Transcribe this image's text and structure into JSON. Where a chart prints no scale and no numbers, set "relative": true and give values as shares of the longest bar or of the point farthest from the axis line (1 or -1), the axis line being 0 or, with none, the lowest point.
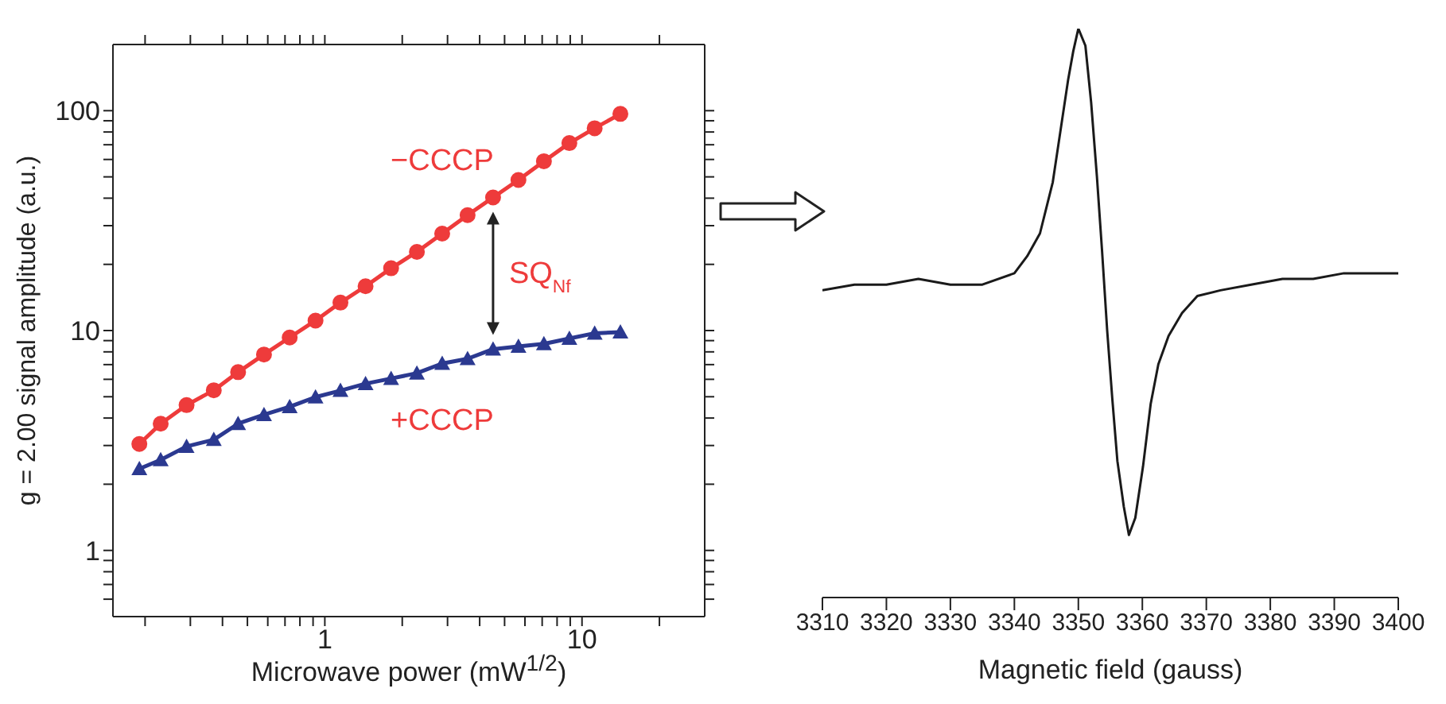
{
  "chart_data": [
    {
      "type": "line",
      "xlabel": "Microwave power (mW$^{1/2}$)",
      "ylabel": "g = 2.00 signal amplitude (a.u.)",
      "log": "xy",
      "xlim": [
        0.15,
        30
      ],
      "ylim": [
        0.5,
        200
      ],
      "xticks": [
        {
          "value": 0.2,
          "label": null
        },
        {
          "value": 0.3,
          "label": null
        },
        {
          "value": 0.4,
          "label": null
        },
        {
          "value": 0.5,
          "label": null
        },
        {
          "value": 0.6,
          "label": null
        },
        {
          "value": 0.7,
          "label": null
        },
        {
          "value": 0.8,
          "label": null
        },
        {
          "value": 0.9,
          "label": null
        },
        1,
        {
          "value": 2,
          "label": null
        },
        {
          "value": 3,
          "label": null
        },
        {
          "value": 4,
          "label": null
        },
        {
          "value": 5,
          "label": null
        },
        {
          "value": 6,
          "label": null
        },
        {
          "value": 7,
          "label": null
        },
        {
          "value": 8,
          "label": null
        },
        {
          "value": 9,
          "label": null
        },
        10,
        {
          "value": 20,
          "label": null
        }
      ],
      "yticks": [
        {
          "value": 0.6,
          "label": null
        },
        {
          "value": 0.7,
          "label": null
        },
        {
          "value": 0.8,
          "label": null
        },
        {
          "value": 0.9,
          "label": null
        },
        1,
        {
          "value": 2,
          "label": null
        },
        {
          "value": 3,
          "label": null
        },
        {
          "value": 4,
          "label": null
        },
        {
          "value": 5,
          "label": null
        },
        {
          "value": 6,
          "label": null
        },
        {
          "value": 7,
          "label": null
        },
        {
          "value": 8,
          "label": null
        },
        {
          "value": 9,
          "label": null
        },
        10,
        {
          "value": 20,
          "label": null
        },
        {
          "value": 30,
          "label": null
        },
        {
          "value": 40,
          "label": null
        },
        {
          "value": 50,
          "label": null
        },
        {
          "value": 60,
          "label": null
        },
        {
          "value": 70,
          "label": null
        },
        {
          "value": 80,
          "label": null
        },
        {
          "value": 90,
          "label": null
        },
        100
      ],
      "x": [
        0.19,
        0.23,
        0.29,
        0.37,
        0.46,
        0.58,
        0.73,
        0.92,
        1.15,
        1.44,
        1.81,
        2.28,
        2.86,
        3.59,
        4.51,
        5.66,
        7.11,
        8.93,
        11.2,
        14.1
      ],
      "series": [
        {
          "name": "−CCCP",
          "color": "#ee3b3b",
          "marker": "circle",
          "values": [
            3.05,
            3.77,
            4.58,
            5.35,
            6.47,
            7.78,
            9.3,
            11.1,
            13.4,
            15.9,
            19.2,
            22.8,
            27.6,
            33.5,
            40.3,
            48.4,
            58.9,
            71.2,
            83.2,
            96.7
          ]
        },
        {
          "name": "+CCCP",
          "color": "#2b3990",
          "marker": "triangle",
          "values": [
            2.35,
            2.58,
            2.97,
            3.19,
            3.77,
            4.14,
            4.5,
            4.98,
            5.33,
            5.73,
            6.05,
            6.4,
            7.08,
            7.44,
            8.23,
            8.46,
            8.7,
            9.2,
            9.72,
            9.84
          ]
        }
      ],
      "annotations": [
        "SQ$_{Nf}$"
      ]
    },
    {
      "type": "line",
      "relative": true,
      "xlabel": "Magnetic field (gauss)",
      "xlim": [
        3310,
        3400
      ],
      "xticks": [
        3310,
        3320,
        3330,
        3340,
        3350,
        3360,
        3370,
        3380,
        3390,
        3400
      ],
      "marker": "none",
      "x": [
        3310,
        3315,
        3320,
        3325,
        3330,
        3335,
        3340,
        3342,
        3344,
        3346,
        3347.2,
        3348.4,
        3349.2,
        3350,
        3351.1,
        3352,
        3352.9,
        3353.7,
        3354.5,
        3355.3,
        3356.1,
        3357.1,
        3357.9,
        3358.9,
        3360.1,
        3361.3,
        3362.5,
        3364.1,
        3366.2,
        3368.6,
        3372.2,
        3377,
        3381.9,
        3386.7,
        3391.5,
        3395.6,
        3400
      ],
      "series": [
        {
          "color": "#1a1a1a",
          "values": [
            0.54,
            0.55,
            0.55,
            0.56,
            0.55,
            0.55,
            0.57,
            0.6,
            0.64,
            0.73,
            0.82,
            0.91,
            0.96,
            1,
            0.97,
            0.87,
            0.74,
            0.61,
            0.47,
            0.35,
            0.24,
            0.16,
            0.11,
            0.14,
            0.23,
            0.34,
            0.41,
            0.46,
            0.5,
            0.53,
            0.54,
            0.55,
            0.56,
            0.56,
            0.57,
            0.57,
            0.57
          ]
        }
      ]
    }
  ]
}
